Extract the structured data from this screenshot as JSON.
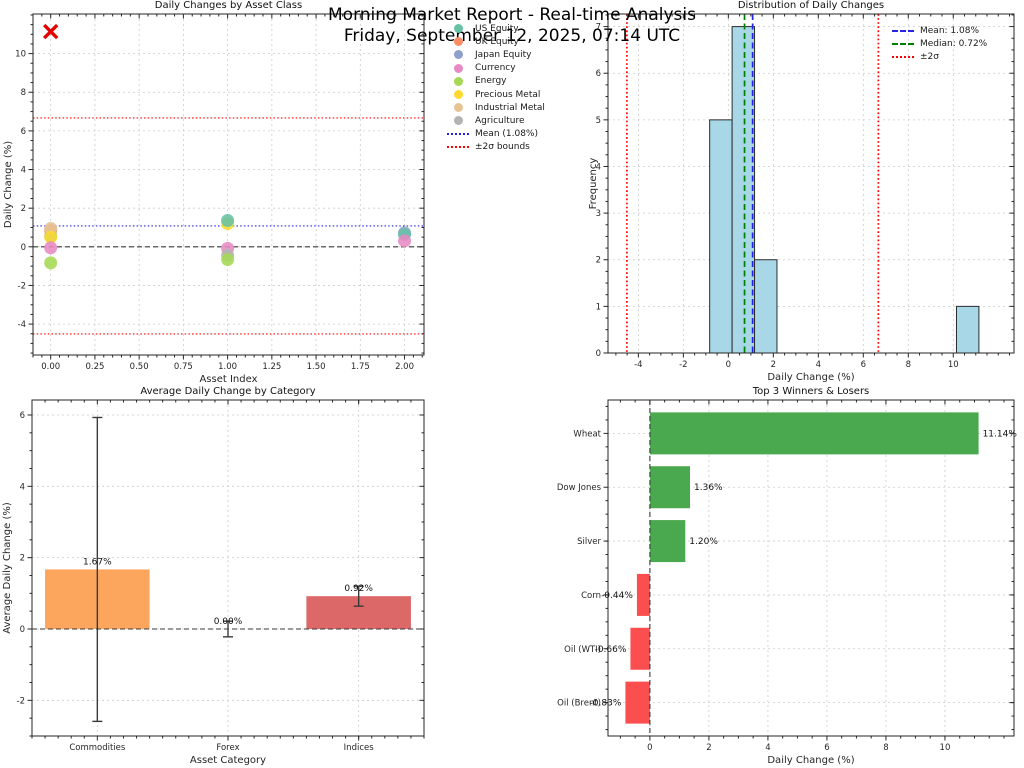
{
  "header": {
    "title": "Morning Market Report - Real-time Analysis",
    "subtitle": "Friday, September 12, 2025, 07:14 UTC"
  },
  "palette": {
    "us_equity": "#66c2a5",
    "uk_equity": "#fc8d62",
    "japan_equity": "#8da0cb",
    "currency": "#e78ac3",
    "energy": "#a6d854",
    "precious_metal": "#ffd92f",
    "industrial_metal": "#e5c494",
    "agriculture": "#b3b3b3",
    "outlier_x": "#e50000",
    "mean_line": "#2424e8",
    "median_line": "#008000",
    "sigma_line": "#ff0000",
    "zero_line": "#3a3a3a",
    "hist_fill": "#a8d8e8",
    "hist_edge": "#2b2b2b",
    "winner_green": "#4aa84e",
    "loser_red": "#fb4f4f"
  },
  "chart_data": [
    {
      "type": "scatter",
      "title": "Daily Changes by Asset Class",
      "xlabel": "Asset Index",
      "ylabel": "Daily Change (%)",
      "xlim": [
        -0.1,
        2.11
      ],
      "ylim": [
        -5.6,
        12.05
      ],
      "xticks": {
        "values": [
          0,
          0.25,
          0.5,
          0.75,
          1,
          1.25,
          1.5,
          1.75,
          2
        ],
        "labels": [
          "0.00",
          "0.25",
          "0.50",
          "0.75",
          "1.00",
          "1.25",
          "1.50",
          "1.75",
          "2.00"
        ]
      },
      "yticks": {
        "values": [
          -4,
          -2,
          0,
          2,
          4,
          6,
          8,
          10
        ],
        "labels": [
          "-4",
          "-2",
          "0",
          "2",
          "4",
          "6",
          "8",
          "10"
        ]
      },
      "mean": 1.08,
      "sigma_bounds": [
        -4.51,
        6.67
      ],
      "outlier": {
        "x": 0,
        "y": 11.14,
        "asset": "Wheat"
      },
      "points": [
        {
          "x": 0,
          "y": 0.85,
          "class": "uk_equity"
        },
        {
          "x": 0,
          "y": 0.55,
          "class": "us_equity"
        },
        {
          "x": 0,
          "y": 0.95,
          "class": "industrial_metal"
        },
        {
          "x": 0,
          "y": 0.5,
          "class": "precious_metal"
        },
        {
          "x": 0,
          "y": -0.05,
          "class": "currency"
        },
        {
          "x": 0,
          "y": -0.83,
          "class": "energy"
        },
        {
          "x": 1,
          "y": 1.2,
          "class": "precious_metal"
        },
        {
          "x": 1,
          "y": 1.36,
          "class": "us_equity"
        },
        {
          "x": 1,
          "y": -0.08,
          "class": "currency"
        },
        {
          "x": 1,
          "y": -0.44,
          "class": "agriculture"
        },
        {
          "x": 1,
          "y": -0.66,
          "class": "energy"
        },
        {
          "x": 2,
          "y": 0.72,
          "class": "japan_equity"
        },
        {
          "x": 2,
          "y": 0.64,
          "class": "us_equity"
        },
        {
          "x": 2,
          "y": 0.31,
          "class": "currency"
        }
      ],
      "legend": [
        {
          "label": "US Equity",
          "color": "#66c2a5"
        },
        {
          "label": "UK Equity",
          "color": "#fc8d62"
        },
        {
          "label": "Japan Equity",
          "color": "#8da0cb"
        },
        {
          "label": "Currency",
          "color": "#e78ac3"
        },
        {
          "label": "Energy",
          "color": "#a6d854"
        },
        {
          "label": "Precious Metal",
          "color": "#ffd92f"
        },
        {
          "label": "Industrial Metal",
          "color": "#e5c494"
        },
        {
          "label": "Agriculture",
          "color": "#b3b3b3"
        },
        {
          "label": "Mean (1.08%)",
          "style": "dotted-blue"
        },
        {
          "label": "±2σ bounds",
          "style": "dotted-red"
        }
      ]
    },
    {
      "type": "histogram",
      "title": "Distribution of Daily Changes",
      "xlabel": "Daily Change (%)",
      "ylabel": "Frequency",
      "xlim": [
        -5.35,
        12.7
      ],
      "ylim": [
        0,
        7.27
      ],
      "xticks": {
        "values": [
          -4,
          -2,
          0,
          2,
          4,
          6,
          8,
          10
        ],
        "labels": [
          "-4",
          "-2",
          "0",
          "2",
          "4",
          "6",
          "8",
          "10"
        ]
      },
      "yticks": {
        "values": [
          0,
          1,
          2,
          3,
          4,
          5,
          6,
          7
        ],
        "labels": [
          "0",
          "1",
          "2",
          "3",
          "4",
          "5",
          "6",
          "7"
        ]
      },
      "bin_start": -0.83,
      "bin_width": 0.9975,
      "counts": [
        5,
        7,
        2,
        0,
        0,
        0,
        0,
        0,
        0,
        0,
        0,
        1
      ],
      "mean": 1.08,
      "median": 0.72,
      "sigma_bounds": [
        -4.51,
        6.67
      ],
      "legend": [
        {
          "label": "Mean: 1.08%",
          "style": "dashed-blue"
        },
        {
          "label": "Median: 0.72%",
          "style": "dashed-green"
        },
        {
          "label": "±2σ",
          "style": "dotted-red"
        }
      ]
    },
    {
      "type": "bar",
      "title": "Average Daily Change by Category",
      "xlabel": "Asset Category",
      "ylabel": "Average Daily Change (%)",
      "categories": [
        "Commodities",
        "Forex",
        "Indices"
      ],
      "values": [
        1.67,
        0.0,
        0.92
      ],
      "errors": [
        4.26,
        0.22,
        0.28
      ],
      "value_labels": [
        "1.67%",
        "0.00%",
        "0.92%"
      ],
      "bar_colors": [
        "#fca55c",
        "#9e9e9e",
        "#dc6868"
      ],
      "ylim": [
        -3.0,
        6.42
      ],
      "yticks": {
        "values": [
          -2,
          0,
          2,
          4,
          6
        ],
        "labels": [
          "-2",
          "0",
          "2",
          "4",
          "6"
        ]
      }
    },
    {
      "type": "hbar",
      "title": "Top 3 Winners & Losers",
      "xlabel": "Daily Change (%)",
      "items": [
        {
          "name": "Wheat",
          "value": 11.14,
          "label": "11.14%",
          "color": "#4aa84e"
        },
        {
          "name": "Dow Jones",
          "value": 1.36,
          "label": "1.36%",
          "color": "#4aa84e"
        },
        {
          "name": "Silver",
          "value": 1.2,
          "label": "1.20%",
          "color": "#4aa84e"
        },
        {
          "name": "Corn",
          "value": -0.44,
          "label": "-0.44%",
          "color": "#fb4f4f"
        },
        {
          "name": "Oil (WTI)",
          "value": -0.66,
          "label": "-0.66%",
          "color": "#fb4f4f"
        },
        {
          "name": "Oil (Brent)",
          "value": -0.83,
          "label": "-0.83%",
          "color": "#fb4f4f"
        }
      ],
      "xlim": [
        -1.42,
        12.34
      ],
      "xticks": {
        "values": [
          0,
          2,
          4,
          6,
          8,
          10
        ],
        "labels": [
          "0",
          "2",
          "4",
          "6",
          "8",
          "10"
        ]
      }
    }
  ]
}
